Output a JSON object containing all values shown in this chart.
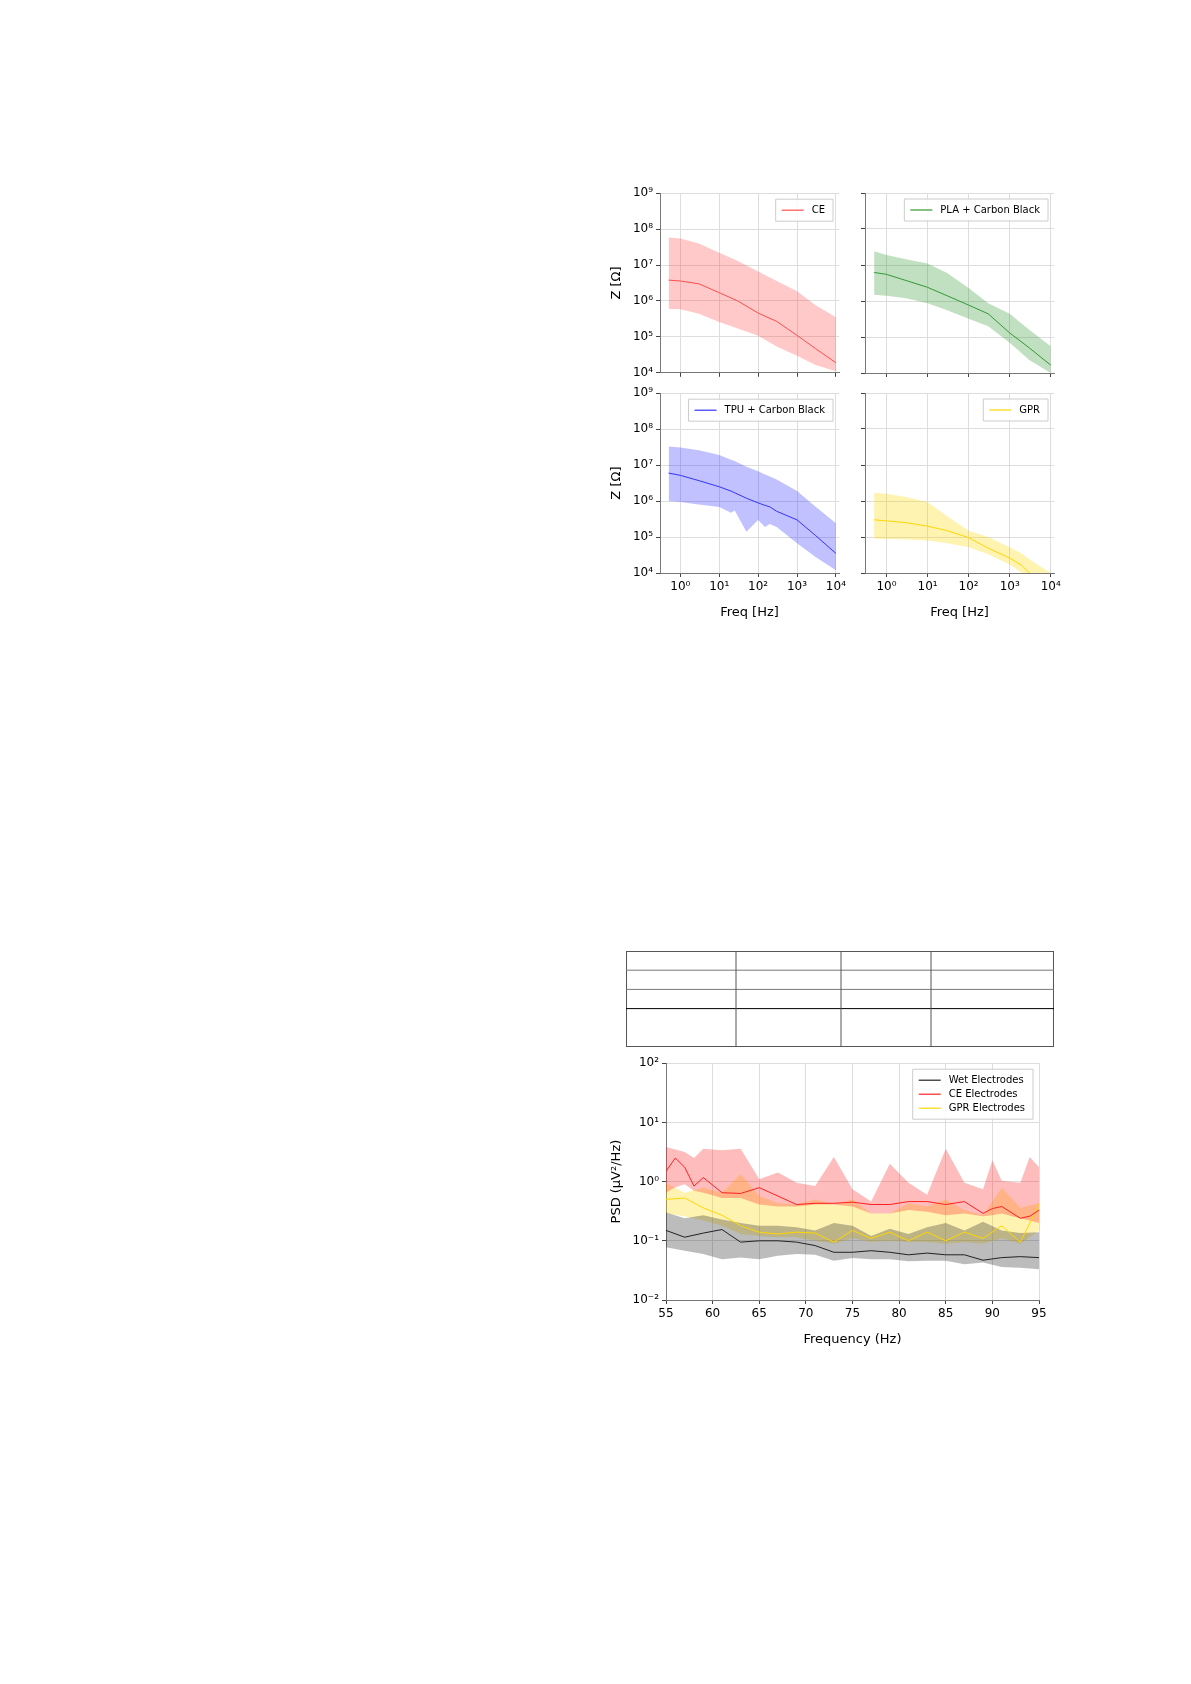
{
  "chart_data": [
    {
      "type": "line",
      "ylabel": "Z [Ω]",
      "x": [
        0.5,
        1,
        3,
        10,
        30,
        100,
        300,
        1000,
        3000,
        10000
      ],
      "series": [
        {
          "name": "CE",
          "color": "#ff4d4d",
          "values": [
            3800000,
            3600000,
            3000000,
            1700000,
            1000000,
            460000,
            270000,
            110000,
            47000,
            19000
          ],
          "lower": [
            600000,
            590000,
            440000,
            260000,
            170000,
            107000,
            54000,
            30000,
            16500,
            11000
          ],
          "upper": [
            58000000,
            55000000,
            40000000,
            22000000,
            13000000,
            6600000,
            3600000,
            1850000,
            760000,
            350000
          ]
        }
      ],
      "xlim": [
        0.3,
        12000
      ],
      "ylim": [
        10000,
        1000000000
      ],
      "xticks": [
        {
          "value": 1,
          "label": null
        },
        {
          "value": 10,
          "label": null
        },
        {
          "value": 100,
          "label": null
        },
        {
          "value": 1000,
          "label": null
        },
        {
          "value": 10000,
          "label": null
        }
      ],
      "yticks": [
        {
          "value": 10000,
          "label": "10⁴"
        },
        {
          "value": 100000,
          "label": "10⁵"
        },
        {
          "value": 1000000,
          "label": "10⁶"
        },
        {
          "value": 10000000,
          "label": "10⁷"
        },
        {
          "value": 100000000,
          "label": "10⁸"
        },
        {
          "value": 1000000000,
          "label": "10⁹"
        }
      ],
      "log": "xy",
      "grid": true,
      "legend": "top right",
      "tick_labels": "y"
    },
    {
      "type": "line",
      "x": [
        0.5,
        1,
        3,
        10,
        30,
        100,
        300,
        1000,
        3000,
        10000
      ],
      "series": [
        {
          "name": "PLA + Carbon Black",
          "color": "#339933",
          "values": [
            6200000,
            5500000,
            3700000,
            2400000,
            1400000,
            770000,
            440000,
            130000,
            50000,
            16500
          ],
          "lower": [
            1500000,
            1400000,
            1200000,
            860000,
            550000,
            320000,
            200000,
            69000,
            23000,
            10000
          ],
          "upper": [
            24000000,
            19000000,
            14500000,
            11000000,
            6000000,
            2300000,
            860000,
            440000,
            160000,
            55000
          ]
        }
      ],
      "xlim": [
        0.3,
        12000
      ],
      "ylim": [
        10000,
        1000000000
      ],
      "xticks": [
        {
          "value": 1,
          "label": null
        },
        {
          "value": 10,
          "label": null
        },
        {
          "value": 100,
          "label": null
        },
        {
          "value": 1000,
          "label": null
        },
        {
          "value": 10000,
          "label": null
        }
      ],
      "yticks": [
        {
          "value": 10000,
          "label": null
        },
        {
          "value": 100000,
          "label": null
        },
        {
          "value": 1000000,
          "label": null
        },
        {
          "value": 10000000,
          "label": null
        },
        {
          "value": 100000000,
          "label": null
        },
        {
          "value": 1000000000,
          "label": null
        }
      ],
      "log": "xy",
      "grid": true,
      "legend": "top right",
      "tick_labels": false
    },
    {
      "type": "line",
      "xlabel": "Freq [Hz]",
      "ylabel": "Z [Ω]",
      "x": [
        0.5,
        1,
        3,
        10,
        20,
        25,
        50,
        100,
        150,
        200,
        300,
        1000,
        3000,
        10000
      ],
      "series": [
        {
          "name": "TPU + Carbon Black",
          "color": "#3333ff",
          "values": [
            6000000,
            5200000,
            3700000,
            2500000,
            1900000,
            1700000,
            1200000,
            890000,
            760000,
            690000,
            520000,
            300000,
            110000,
            35000
          ],
          "lower": [
            1000000,
            940000,
            800000,
            690000,
            470000,
            550000,
            140000,
            300000,
            190000,
            230000,
            190000,
            67000,
            28000,
            12000
          ],
          "upper": [
            33000000,
            31000000,
            26000000,
            19000000,
            14000000,
            13000000,
            9000000,
            6700000,
            5500000,
            4800000,
            4000000,
            1900000,
            700000,
            240000
          ]
        }
      ],
      "xlim": [
        0.3,
        12000
      ],
      "ylim": [
        10000,
        1000000000
      ],
      "xticks": [
        {
          "value": 1,
          "label": "10⁰"
        },
        {
          "value": 10,
          "label": "10¹"
        },
        {
          "value": 100,
          "label": "10²"
        },
        {
          "value": 1000,
          "label": "10³"
        },
        {
          "value": 10000,
          "label": "10⁴"
        }
      ],
      "yticks": [
        {
          "value": 10000,
          "label": "10⁴"
        },
        {
          "value": 100000,
          "label": "10⁵"
        },
        {
          "value": 1000000,
          "label": "10⁶"
        },
        {
          "value": 10000000,
          "label": "10⁷"
        },
        {
          "value": 100000000,
          "label": "10⁸"
        },
        {
          "value": 1000000000,
          "label": "10⁹"
        }
      ],
      "log": "xy",
      "grid": true,
      "legend": "top right"
    },
    {
      "type": "line",
      "xlabel": "Freq [Hz]",
      "x": [
        0.5,
        1,
        3,
        10,
        30,
        100,
        300,
        1000,
        2000,
        3000,
        10000
      ],
      "series": [
        {
          "name": "GPR",
          "color": "#ffd700",
          "values": [
            300000,
            280000,
            250000,
            200000,
            150000,
            96000,
            49000,
            26000,
            16000,
            10000,
            null
          ],
          "lower": [
            90000,
            88000,
            85000,
            80000,
            67000,
            52000,
            33000,
            17000,
            10000,
            10000,
            10000
          ],
          "upper": [
            1700000,
            1600000,
            1300000,
            940000,
            380000,
            150000,
            100000,
            52000,
            34000,
            24000,
            10000
          ]
        }
      ],
      "xlim": [
        0.3,
        12000
      ],
      "ylim": [
        10000,
        1000000000
      ],
      "xticks": [
        {
          "value": 1,
          "label": "10⁰"
        },
        {
          "value": 10,
          "label": "10¹"
        },
        {
          "value": 100,
          "label": "10²"
        },
        {
          "value": 1000,
          "label": "10³"
        },
        {
          "value": 10000,
          "label": "10⁴"
        }
      ],
      "yticks": [
        {
          "value": 10000,
          "label": null
        },
        {
          "value": 100000,
          "label": null
        },
        {
          "value": 1000000,
          "label": null
        },
        {
          "value": 10000000,
          "label": null
        },
        {
          "value": 100000000,
          "label": null
        },
        {
          "value": 1000000000,
          "label": null
        }
      ],
      "log": "xy",
      "grid": true,
      "legend": "top right",
      "tick_labels": "x"
    },
    {
      "type": "line",
      "xlabel": "Frequency (Hz)",
      "ylabel": "PSD (μV²/Hz)",
      "series": [
        {
          "name": "Wet Electrodes",
          "color": "#222222",
          "x": [
            55,
            57,
            59,
            61,
            63,
            65,
            67,
            69,
            71,
            73,
            75,
            77,
            79,
            81,
            83,
            85,
            87,
            89,
            91,
            93,
            95
          ],
          "values": [
            0.15,
            0.115,
            0.135,
            0.155,
            0.095,
            0.1,
            0.1,
            0.095,
            0.083,
            0.064,
            0.064,
            0.068,
            0.064,
            0.058,
            0.062,
            0.058,
            0.058,
            0.047,
            0.052,
            0.054,
            0.052
          ],
          "lower": [
            0.078,
            0.068,
            0.06,
            0.049,
            0.052,
            0.049,
            0.056,
            0.06,
            0.058,
            0.046,
            0.051,
            0.049,
            0.049,
            0.045,
            0.046,
            0.046,
            0.04,
            0.043,
            0.036,
            0.035,
            0.033
          ],
          "upper": [
            0.3,
            0.24,
            0.27,
            0.23,
            0.2,
            0.18,
            0.18,
            0.17,
            0.15,
            0.2,
            0.18,
            0.12,
            0.16,
            0.13,
            0.17,
            0.2,
            0.15,
            0.21,
            0.15,
            0.135,
            0.14
          ]
        },
        {
          "name": "CE Electrodes",
          "color": "#ff2020",
          "x": [
            55,
            56,
            57,
            58,
            59,
            61,
            63,
            65,
            67,
            69,
            71,
            73,
            75,
            77,
            79,
            81,
            83,
            85,
            87,
            89,
            90,
            91,
            93,
            94,
            95
          ],
          "values": [
            1.5,
            2.5,
            1.75,
            0.84,
            1.17,
            0.65,
            0.63,
            0.79,
            0.57,
            0.41,
            0.43,
            0.43,
            0.45,
            0.41,
            0.41,
            0.46,
            0.46,
            0.41,
            0.46,
            0.29,
            0.35,
            0.38,
            0.24,
            0.26,
            0.33
          ],
          "lower": [
            0.65,
            0.8,
            0.9,
            0.7,
            0.65,
            0.53,
            0.53,
            0.41,
            0.38,
            0.38,
            0.41,
            0.41,
            0.38,
            0.29,
            0.29,
            0.33,
            0.31,
            0.27,
            0.29,
            0.26,
            0.27,
            0.29,
            0.24,
            0.22,
            0.2
          ],
          "upper": [
            3.85,
            3.5,
            3.15,
            2.5,
            3.6,
            3.4,
            3.6,
            1.1,
            1.43,
            0.96,
            0.84,
            2.6,
            0.74,
            0.46,
            2.0,
            0.96,
            0.6,
            3.6,
            0.96,
            0.74,
            2.3,
            1.03,
            0.96,
            2.6,
            1.75
          ]
        },
        {
          "name": "GPR Electrodes",
          "color": "#ffd700",
          "x": [
            55,
            57,
            59,
            61,
            63,
            65,
            67,
            69,
            71,
            73,
            75,
            77,
            79,
            81,
            83,
            85,
            87,
            89,
            91,
            93,
            95
          ],
          "values": [
            0.5,
            0.53,
            0.36,
            0.27,
            0.18,
            0.14,
            0.13,
            0.14,
            0.135,
            0.095,
            0.15,
            0.11,
            0.14,
            0.1,
            0.14,
            0.1,
            0.14,
            0.11,
            0.18,
            0.095,
            0.41
          ],
          "lower": [
            0.29,
            0.26,
            0.22,
            0.18,
            0.13,
            0.12,
            0.115,
            0.115,
            0.1,
            0.089,
            0.11,
            0.095,
            0.1,
            0.095,
            0.095,
            0.089,
            0.095,
            0.089,
            0.11,
            0.089,
            0.15
          ],
          "upper": [
            0.96,
            0.65,
            0.79,
            0.65,
            1.34,
            0.57,
            0.43,
            0.41,
            0.5,
            0.41,
            0.5,
            0.29,
            0.29,
            0.43,
            0.38,
            0.5,
            0.33,
            0.27,
            0.79,
            0.36,
            0.43
          ]
        }
      ],
      "xlim": [
        55,
        95
      ],
      "ylim": [
        0.01,
        100
      ],
      "xticks": [
        55,
        60,
        65,
        70,
        75,
        80,
        85,
        90,
        95
      ],
      "yticks": [
        {
          "value": 0.01,
          "label": "10⁻²"
        },
        {
          "value": 0.1,
          "label": "10⁻¹"
        },
        {
          "value": 1,
          "label": "10⁰"
        },
        {
          "value": 10,
          "label": "10¹"
        },
        {
          "value": 100,
          "label": "10²"
        }
      ],
      "log": "y",
      "grid": true,
      "legend": "top right"
    }
  ]
}
